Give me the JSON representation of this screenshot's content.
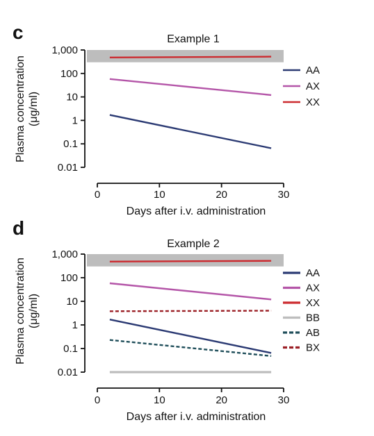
{
  "chart_data": [
    {
      "panel": "c",
      "type": "line",
      "title": "Example 1",
      "xlabel": "Days after i.v. administration",
      "ylabel": "Plasma concentration",
      "ylabel_unit": "(μg/ml)",
      "xlim": [
        0,
        30
      ],
      "ylim": [
        0.01,
        1000
      ],
      "yscale": "log",
      "xticks": [
        "0",
        "10",
        "20",
        "30"
      ],
      "yticks": [
        "0.01",
        "0.1",
        "1",
        "10",
        "100",
        "1,000"
      ],
      "legend_position": "right",
      "band": {
        "from": 300,
        "to": 1000,
        "color": "#bdbdbd"
      },
      "series": [
        {
          "name": "AA",
          "color": "#2b3a73",
          "dash": "solid",
          "x": [
            2,
            28
          ],
          "y": [
            1.7,
            0.065
          ]
        },
        {
          "name": "AX",
          "color": "#b455a8",
          "dash": "solid",
          "x": [
            2,
            28
          ],
          "y": [
            58,
            12
          ]
        },
        {
          "name": "XX",
          "color": "#cc2a2f",
          "dash": "solid",
          "x": [
            2,
            28
          ],
          "y": [
            480,
            520
          ]
        }
      ]
    },
    {
      "panel": "d",
      "type": "line",
      "title": "Example 2",
      "xlabel": "Days after i.v. administration",
      "ylabel": "Plasma concentration",
      "ylabel_unit": "(μg/ml)",
      "xlim": [
        0,
        30
      ],
      "ylim": [
        0.01,
        1000
      ],
      "yscale": "log",
      "xticks": [
        "0",
        "10",
        "20",
        "30"
      ],
      "yticks": [
        "0.01",
        "0.1",
        "1",
        "10",
        "100",
        "1,000"
      ],
      "legend_position": "right",
      "band": {
        "from": 300,
        "to": 1000,
        "color": "#bdbdbd"
      },
      "series": [
        {
          "name": "AA",
          "color": "#2b3a73",
          "dash": "solid",
          "x": [
            2,
            28
          ],
          "y": [
            1.7,
            0.065
          ]
        },
        {
          "name": "AX",
          "color": "#b455a8",
          "dash": "solid",
          "x": [
            2,
            28
          ],
          "y": [
            58,
            12
          ]
        },
        {
          "name": "XX",
          "color": "#cc2a2f",
          "dash": "solid",
          "x": [
            2,
            28
          ],
          "y": [
            480,
            520
          ]
        },
        {
          "name": "BB",
          "color": "#bdbdbd",
          "dash": "solid",
          "x": [
            2,
            28
          ],
          "y": [
            0.01,
            0.01
          ]
        },
        {
          "name": "AB",
          "color": "#1f4e5a",
          "dash": "dashed",
          "x": [
            2,
            28
          ],
          "y": [
            0.23,
            0.048
          ]
        },
        {
          "name": "BX",
          "color": "#9b1f25",
          "dash": "dashed",
          "x": [
            2,
            28
          ],
          "y": [
            3.8,
            4.0
          ]
        }
      ]
    }
  ]
}
